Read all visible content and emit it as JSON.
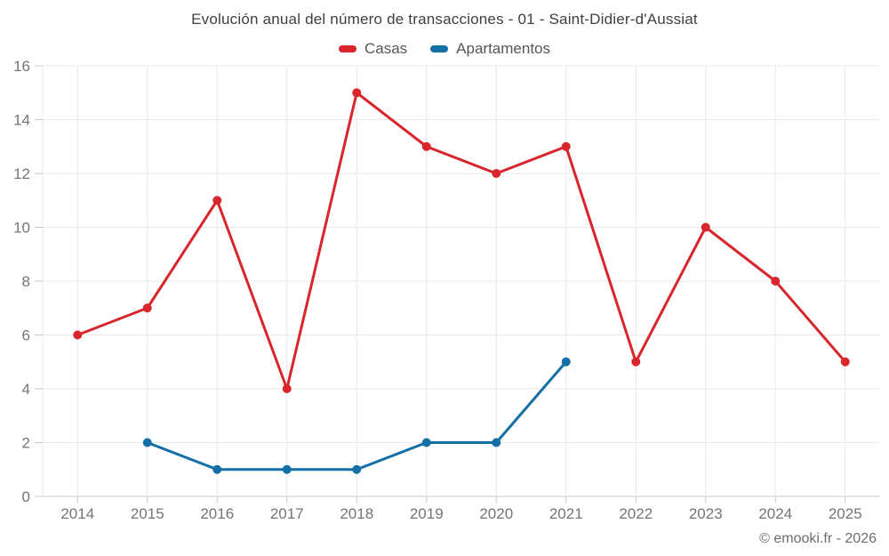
{
  "header": {
    "title": "Evolución anual del número de transacciones - 01 - Saint-Didier-d'Aussiat"
  },
  "footer": {
    "credit": "© emooki.fr - 2026"
  },
  "chart_data": {
    "type": "line",
    "title": "Evolución anual del número de transacciones - 01 - Saint-Didier-d'Aussiat",
    "categories": [
      "2014",
      "2015",
      "2016",
      "2017",
      "2018",
      "2019",
      "2020",
      "2021",
      "2022",
      "2023",
      "2024",
      "2025"
    ],
    "series": [
      {
        "name": "Casas",
        "color": "#d8262c",
        "values": [
          6,
          7,
          11,
          4,
          15,
          13,
          12,
          13,
          5,
          10,
          8,
          5
        ]
      },
      {
        "name": "Apartamentos",
        "color": "#136fa6",
        "values": [
          null,
          2,
          1,
          1,
          1,
          2,
          2,
          5,
          null,
          null,
          null,
          null
        ]
      }
    ],
    "xlabel": "",
    "ylabel": "",
    "ylim": [
      0,
      16
    ],
    "y_ticks": [
      0,
      2,
      4,
      6,
      8,
      10,
      12,
      14,
      16
    ],
    "grid": true,
    "legend_position": "top",
    "colors": {
      "grid": "#e9e9e9",
      "axis": "#c9c9c9",
      "tick_text": "#757575"
    },
    "marker_radius": 5,
    "line_width": 3
  }
}
